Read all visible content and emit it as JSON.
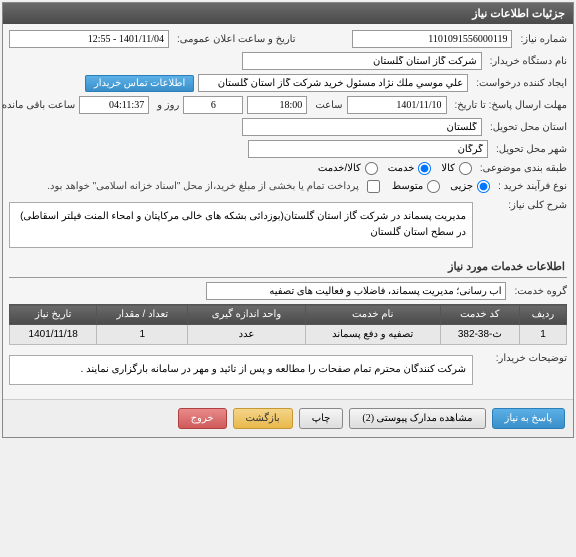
{
  "panel": {
    "title": "جزئیات اطلاعات نیاز"
  },
  "fields": {
    "need_no_label": "شماره نیاز:",
    "need_no": "1101091556000119",
    "announce_label": "تاریخ و ساعت اعلان عمومی:",
    "announce": "1401/11/04 - 12:55",
    "buyer_org_label": "نام دستگاه خریدار:",
    "buyer_org": "شرکت گاز استان گلستان",
    "requester_label": "ایجاد کننده درخواست:",
    "requester": "علي موسي ملك نژاد مسئول خريد شركت گاز استان گلستان",
    "contact_btn": "اطلاعات تماس خریدار",
    "deadline_label": "مهلت ارسال پاسخ: تا تاریخ:",
    "deadline_date": "1401/11/10",
    "time_label": "ساعت",
    "deadline_time": "18:00",
    "days_label": "روز و",
    "days": "6",
    "remain_time": "04:11:37",
    "remain_label": "ساعت باقی مانده",
    "province_label": "استان محل تحویل:",
    "province": "گلستان",
    "city_label": "شهر محل تحویل:",
    "city": "گرگان",
    "category_label": "طبقه بندی موضوعی:",
    "cat_goods": "کالا",
    "cat_service": "خدمت",
    "cat_both": "کالا/خدمت",
    "process_label": "نوع فرآیند خرید :",
    "proc_small": "جزیی",
    "proc_medium": "متوسط",
    "process_note": "پرداخت تمام یا بخشی از مبلغ خرید،از محل \"اسناد خزانه اسلامی\" خواهد بود.",
    "desc_label": "شرح کلی نیاز:",
    "desc": "مدیریت پسماند در شرکت گاز استان گلستان(بوزدائی بشکه های خالی مرکاپتان و امحاء المنت فیلتر اسقاطی) در سطح استان گلستان",
    "section2_title": "اطلاعات خدمات مورد نیاز",
    "group_label": "گروه خدمت:",
    "group": "آب رسانی؛ مدیریت پسماند، فاضلاب و فعالیت های تصفیه",
    "buyer_note_label": "توضیحات خریدار:",
    "buyer_note": "شرکت کنندگان محترم تمام صفحات را مطالعه و پس از تائید و مهر در سامانه بارگزاری نمایند ."
  },
  "table": {
    "headers": [
      "ردیف",
      "کد خدمت",
      "نام خدمت",
      "واحد اندازه گیری",
      "تعداد / مقدار",
      "تاریخ نیاز"
    ],
    "rows": [
      [
        "1",
        "ث-38-382",
        "تصفیه و دفع پسماند",
        "عدد",
        "1",
        "1401/11/18"
      ]
    ]
  },
  "buttons": {
    "reply": "پاسخ به نیاز",
    "docs": "مشاهده مدارک پیوستی (2)",
    "print": "چاپ",
    "back": "بازگشت",
    "exit": "خروج"
  }
}
